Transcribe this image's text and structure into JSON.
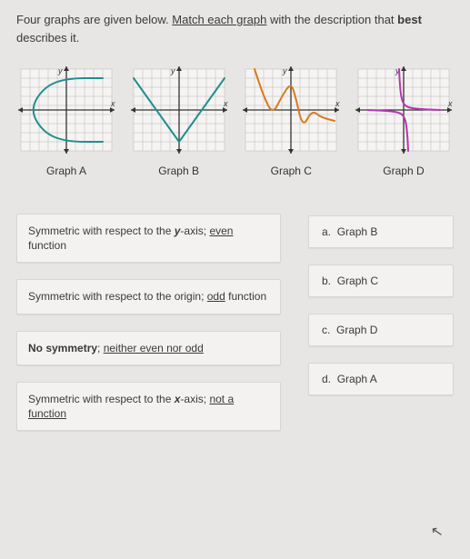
{
  "instructions": {
    "pre": "Four graphs are given below. ",
    "underlined": "Match each graph",
    "mid": " with the description that ",
    "bold": "best",
    "post": " describes it."
  },
  "graphs": {
    "labels": [
      "Graph A",
      "Graph B",
      "Graph C",
      "Graph D"
    ],
    "axis_label_x": "x",
    "axis_label_y": "y",
    "grid_color": "#b7b7b7",
    "axis_color": "#333333",
    "background_color": "#f5f4f2",
    "stroke_width": 2,
    "A": {
      "color": "#1f8f8f",
      "type": "parametric-curve",
      "points": [
        [
          95,
          15
        ],
        [
          55,
          15
        ],
        [
          30,
          25
        ],
        [
          15,
          50
        ],
        [
          30,
          75
        ],
        [
          55,
          85
        ],
        [
          95,
          85
        ]
      ],
      "arrow_end": true
    },
    "B": {
      "color": "#1f8f8f",
      "type": "v-shape",
      "points": [
        [
          5,
          15
        ],
        [
          55,
          85
        ],
        [
          105,
          15
        ]
      ]
    },
    "C": {
      "color": "#d97a1f",
      "type": "wavy-curve",
      "points": [
        [
          15,
          5
        ],
        [
          25,
          35
        ],
        [
          35,
          55
        ],
        [
          45,
          35
        ],
        [
          55,
          20
        ],
        [
          60,
          35
        ],
        [
          68,
          70
        ],
        [
          78,
          50
        ],
        [
          88,
          58
        ],
        [
          103,
          62
        ]
      ],
      "arrow_end": true
    },
    "D": {
      "color": "#b536b5",
      "type": "odd-curve",
      "points": [
        [
          50,
          5
        ],
        [
          51,
          25
        ],
        [
          53,
          40
        ],
        [
          58,
          47
        ],
        [
          72,
          49
        ],
        [
          95,
          50
        ]
      ],
      "points2": [
        [
          60,
          95
        ],
        [
          59,
          75
        ],
        [
          57,
          60
        ],
        [
          52,
          53
        ],
        [
          38,
          51
        ],
        [
          15,
          50
        ]
      ]
    }
  },
  "descriptions": [
    {
      "pre": "Symmetric",
      "mid": " with respect to the ",
      "axis": "y",
      "post": "-axis; ",
      "u": "even",
      "end": " function"
    },
    {
      "pre": "Symmetric",
      "mid": " with respect to the origin; ",
      "axis": "",
      "post": "",
      "u": "odd",
      "end": " function"
    },
    {
      "pre": "No symmetry",
      "mid": "; ",
      "axis": "",
      "post": "",
      "u": "neither even nor odd",
      "end": ""
    },
    {
      "pre": "Symmetric",
      "mid": " with respect to the ",
      "axis": "x",
      "post": "-axis; ",
      "u": "not a function",
      "end": ""
    }
  ],
  "options": [
    {
      "letter": "a.",
      "text": "Graph B"
    },
    {
      "letter": "b.",
      "text": "Graph C"
    },
    {
      "letter": "c.",
      "text": "Graph D"
    },
    {
      "letter": "d.",
      "text": "Graph A"
    }
  ]
}
